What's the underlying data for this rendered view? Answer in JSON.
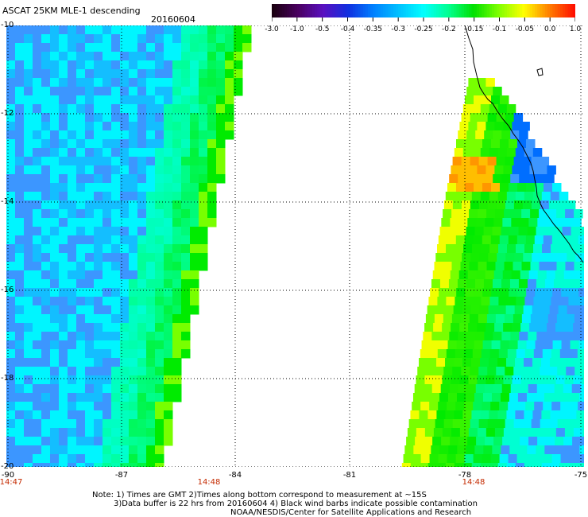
{
  "header": {
    "title": "ASCAT 25KM MLE-1 descending",
    "date": "20160604"
  },
  "colorbar": {
    "labels": [
      "-3.0",
      "-1.0",
      "-0.5",
      "-0.4",
      "-0.35",
      "-0.3",
      "-0.25",
      "-0.2",
      "-0.15",
      "-0.1",
      "-0.05",
      "0.0",
      "1.0"
    ],
    "colors": [
      "#1a0010",
      "#4a0060",
      "#5a10c0",
      "#1030e0",
      "#0080ff",
      "#00c0ff",
      "#00ffff",
      "#00ff90",
      "#00e000",
      "#80ff00",
      "#ffff00",
      "#ff8000",
      "#ff1000"
    ]
  },
  "axes": {
    "lat_labels": [
      "-10",
      "-12",
      "-14",
      "-16",
      "-18",
      "-20"
    ],
    "lon_labels": [
      "-90",
      "-87",
      "-84",
      "-81",
      "-78",
      "-75"
    ],
    "time_labels": [
      "14:47",
      "14:48",
      "14:48"
    ]
  },
  "notes": [
    "Note: 1) Times are GMT 2)Times along bottom correspond to measurement at ~15S",
    "3)Data buffer is 22 hrs from 20160604 4) Black wind barbs indicate possible contamination",
    "NOAA/NESDIS/Center for Satellite Applications and Research"
  ]
}
